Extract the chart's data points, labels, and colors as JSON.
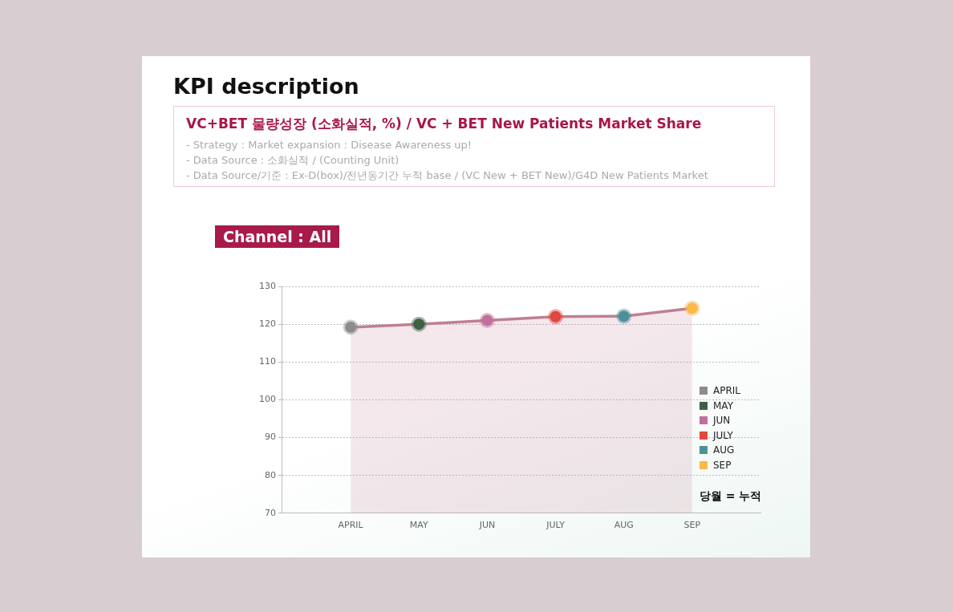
{
  "chart_data": {
    "type": "area",
    "title": "KPI description",
    "subtitle": "VC+BET 물량성장 (소화실적, %) / VC + BET New Patients Market Share",
    "annotations": [
      "- Strategy : Market expansion : Disease Awareness up!",
      "- Data Source : 소화실적 / (Counting Unit)",
      "- Data Source/기준 : Ex-D(box)/전년동기간 누적 base / (VC New + BET New)/G4D New Patients Market",
      "Channel : All",
      "당월 = 누적"
    ],
    "categories": [
      "APRIL",
      "MAY",
      "JUN",
      "JULY",
      "AUG",
      "SEP"
    ],
    "series": [
      {
        "color": "#c07f93",
        "values": [
          119.2,
          120,
          121,
          122,
          122.1,
          124.2
        ],
        "colors": [
          "#8c8c8c",
          "#3d6145",
          "#c0709a",
          "#e0473e",
          "#4e9099",
          "#fbb94a"
        ]
      }
    ],
    "ylim": [
      70,
      130
    ],
    "yticks": [
      70,
      80,
      90,
      100,
      110,
      120,
      130
    ],
    "grid": "y",
    "marker": "circle",
    "line_style": "solid"
  }
}
